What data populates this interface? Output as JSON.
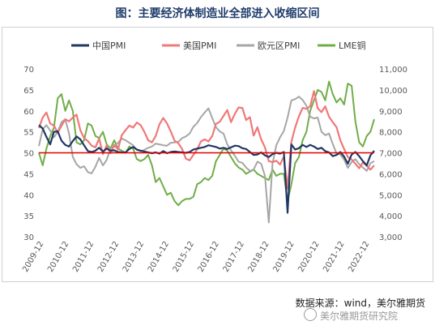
{
  "title": "图：主要经济体制造业全部进入收缩区间",
  "source": "数据来源：wind，美尔雅期货",
  "watermark": "美尔雅期货研究院",
  "colors": {
    "china": "#1f3864",
    "us": "#f07878",
    "euro": "#a6a6a6",
    "lme": "#70ad47",
    "ref": "#e00000"
  },
  "chart_data": {
    "type": "line",
    "x_ticks": [
      "2009-12",
      "2010-12",
      "2011-12",
      "2012-12",
      "2013-12",
      "2014-12",
      "2015-12",
      "2016-12",
      "2017-12",
      "2018-12",
      "2019-12",
      "2020-12",
      "2021-12",
      "2022-12"
    ],
    "ylim_left": [
      30,
      70
    ],
    "yticks_left": [
      "30",
      "35",
      "40",
      "45",
      "50",
      "55",
      "60",
      "65",
      "70"
    ],
    "ylim_right": [
      3000,
      11000
    ],
    "yticks_right": [
      "3,000",
      "4,000",
      "5,000",
      "6,000",
      "7,000",
      "8,000",
      "9,000",
      "10,000",
      "11,000"
    ],
    "reference_line": 50,
    "legend_position": "top",
    "series": [
      {
        "name": "中国PMI",
        "axis": "left",
        "values": [
          56.6,
          55.8,
          53.8,
          52.0,
          55.0,
          55.1,
          52.9,
          51.9,
          51.5,
          52.8,
          53.9,
          53.2,
          51.8,
          50.4,
          50.2,
          50.5,
          51.2,
          50.3,
          51.0,
          50.5,
          50.6,
          50.2,
          50.1,
          50.1,
          50.9,
          51.4,
          50.8,
          50.5,
          50.3,
          50.1,
          49.9,
          50.1,
          49.8,
          50.4,
          49.9,
          50.2,
          50.3,
          50.2,
          50.1,
          50.0,
          50.2,
          50.8,
          51.0,
          51.2,
          51.4,
          51.8,
          51.6,
          51.4,
          51.0,
          51.2,
          50.9,
          51.3,
          51.7,
          51.6,
          51.1,
          50.9,
          50.2,
          49.5,
          49.6,
          50.1,
          49.4,
          49.0,
          49.7,
          50.0,
          49.8,
          50.2,
          35.7,
          52.0,
          50.8,
          51.1,
          51.9,
          51.4,
          51.9,
          51.5,
          50.9,
          51.2,
          50.4,
          50.1,
          49.2,
          49.5,
          50.2,
          49.1,
          47.4,
          49.6,
          50.2,
          49.2,
          48.0,
          47.0,
          49.4,
          50.5
        ]
      },
      {
        "name": "美国PMI",
        "axis": "left",
        "values": [
          55.9,
          58.4,
          59.6,
          57.0,
          56.5,
          54.8,
          56.4,
          58.0,
          57.5,
          58.4,
          59.1,
          55.4,
          53.5,
          52.8,
          51.7,
          51.3,
          53.4,
          49.7,
          51.8,
          49.9,
          51.9,
          50.8,
          54.2,
          55.4,
          56.5,
          56.0,
          57.2,
          56.6,
          55.0,
          53.0,
          52.5,
          54.0,
          56.8,
          58.3,
          57.0,
          55.1,
          52.9,
          52.3,
          50.9,
          48.6,
          48.2,
          49.5,
          50.8,
          52.7,
          53.2,
          52.7,
          54.0,
          56.9,
          57.4,
          58.8,
          60.2,
          57.3,
          59.3,
          60.8,
          60.7,
          57.8,
          58.5,
          54.1,
          56.1,
          53.2,
          51.3,
          48.0,
          47.8,
          48.1,
          47.2,
          49.1,
          41.5,
          52.6,
          56.0,
          58.7,
          60.7,
          60.5,
          61.1,
          64.7,
          60.6,
          59.7,
          61.1,
          58.6,
          57.3,
          56.1,
          53.0,
          50.9,
          49.0,
          48.4,
          47.4,
          46.3,
          47.7,
          46.9,
          46.0,
          47.0
        ]
      },
      {
        "name": "欧元区PMI",
        "axis": "left",
        "values": [
          51.6,
          55.6,
          56.6,
          55.3,
          53.7,
          55.0,
          57.3,
          58.0,
          54.6,
          49.0,
          47.3,
          46.4,
          46.8,
          45.4,
          45.1,
          46.7,
          48.8,
          47.0,
          48.3,
          51.1,
          51.4,
          52.4,
          53.4,
          53.0,
          52.4,
          51.8,
          50.7,
          50.4,
          50.7,
          51.2,
          51.5,
          52.2,
          52.0,
          51.8,
          51.7,
          52.4,
          52.5,
          52.6,
          53.5,
          53.9,
          54.6,
          56.2,
          57.1,
          58.5,
          59.6,
          60.6,
          58.3,
          56.1,
          55.1,
          54.6,
          52.0,
          50.6,
          49.3,
          47.9,
          47.6,
          46.5,
          45.7,
          46.0,
          47.9,
          47.4,
          44.5,
          33.4,
          47.4,
          51.8,
          53.7,
          55.2,
          58.4,
          62.5,
          62.8,
          63.4,
          62.6,
          61.2,
          58.6,
          58.2,
          58.4,
          55.0,
          54.2,
          54.6,
          52.1,
          49.8,
          49.6,
          48.4,
          46.4,
          47.8,
          48.5,
          47.3,
          46.5,
          45.7,
          47.5,
          48.0
        ]
      },
      {
        "name": "LME铜",
        "axis": "right",
        "values": [
          7000,
          6400,
          7200,
          7800,
          8200,
          9600,
          9800,
          9000,
          9500,
          9000,
          7500,
          7400,
          7600,
          8400,
          8300,
          7800,
          7700,
          8000,
          7400,
          7200,
          7600,
          7200,
          7100,
          7000,
          7300,
          7200,
          6700,
          6600,
          6700,
          6900,
          6400,
          5600,
          5800,
          5400,
          5000,
          5100,
          4700,
          4500,
          4700,
          4800,
          4800,
          4900,
          5500,
          5600,
          5800,
          5700,
          5900,
          6600,
          6900,
          7200,
          7100,
          6800,
          6500,
          6300,
          6200,
          6000,
          6100,
          6200,
          6000,
          5900,
          5800,
          5700,
          6200,
          5900,
          6000,
          6000,
          4700,
          5500,
          6500,
          6800,
          7600,
          8000,
          9000,
          9500,
          10000,
          9900,
          9500,
          10400,
          9800,
          9400,
          9600,
          9300,
          10300,
          10200,
          8500,
          7500,
          7300,
          7800,
          8000,
          8600
        ]
      }
    ]
  }
}
